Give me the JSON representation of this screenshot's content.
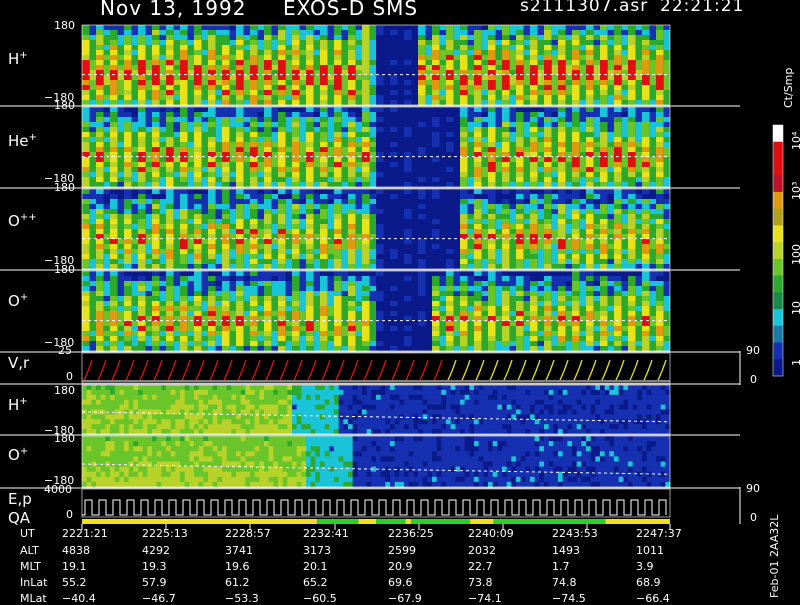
{
  "header": {
    "date": "Nov 13, 1992",
    "mission": "EXOS-D SMS",
    "file": "s2111307.asr",
    "time": "22:21:21"
  },
  "panels": {
    "hplus": {
      "label": "H",
      "sup": "+",
      "ymax": "180",
      "ymin": "−180"
    },
    "heplus": {
      "label": "He",
      "sup": "+",
      "ymax": "180",
      "ymin": "−180"
    },
    "oplusplus": {
      "label": "O",
      "sup": "++",
      "ymax": "180",
      "ymin": "−180"
    },
    "oplus": {
      "label": "O",
      "sup": "+",
      "ymax": "180",
      "ymin": "−180"
    },
    "vr": {
      "label": "V,r",
      "ymax": "25",
      "ymin": "0",
      "rmax": "90",
      "rmin": "0"
    },
    "hplus2": {
      "label": "H",
      "sup": "+",
      "ymax": "180",
      "ymin": "−180"
    },
    "oplus2": {
      "label": "O",
      "sup": "+",
      "ymax": "180",
      "ymin": "−180"
    },
    "ep": {
      "label1": "E,p",
      "label2": "QA",
      "ymax": "4000",
      "ymin": "0",
      "rmax": "90",
      "rmin": "0"
    }
  },
  "colorbar": {
    "unit": "Ct/Smp",
    "ticks": [
      "10⁴",
      "10³",
      "100",
      "10",
      "1"
    ]
  },
  "side_text": "Feb-01 2AA32L",
  "footer": {
    "labels": [
      "UT",
      "ALT",
      "MLT",
      "InLat",
      "MLat"
    ],
    "columns": [
      {
        "UT": "2221:21",
        "ALT": "4838",
        "MLT": "19.1",
        "InLat": "55.2",
        "MLat": "−40.4"
      },
      {
        "UT": "2225:13",
        "ALT": "4292",
        "MLT": "19.3",
        "InLat": "57.9",
        "MLat": "−46.7"
      },
      {
        "UT": "2228:57",
        "ALT": "3741",
        "MLT": "19.6",
        "InLat": "61.2",
        "MLat": "−53.3"
      },
      {
        "UT": "2232:41",
        "ALT": "3173",
        "MLT": "20.1",
        "InLat": "65.2",
        "MLat": "−60.5"
      },
      {
        "UT": "2236:25",
        "ALT": "2599",
        "MLT": "20.9",
        "InLat": "69.6",
        "MLat": "−67.9"
      },
      {
        "UT": "2240:09",
        "ALT": "2032",
        "MLT": "22.7",
        "InLat": "73.8",
        "MLat": "−74.1"
      },
      {
        "UT": "2243:53",
        "ALT": "1493",
        "MLT": "1.7",
        "InLat": "74.8",
        "MLat": "−74.5"
      },
      {
        "UT": "2247:37",
        "ALT": "1011",
        "MLT": "3.9",
        "InLat": "68.9",
        "MLat": "−66.4"
      }
    ]
  },
  "chart_data": {
    "type": "heatmap",
    "x_ticks": [
      "2221:21",
      "2225:13",
      "2228:57",
      "2232:41",
      "2236:25",
      "2240:09",
      "2243:53",
      "2247:37"
    ],
    "pitch_panels": [
      "H+",
      "He+",
      "O++",
      "O+"
    ],
    "pitch_ylim": [
      -180,
      180
    ],
    "n_sweeps": 42,
    "colorbar_scale": "log",
    "colorbar_range": [
      1,
      10000
    ],
    "colors": {
      "background": "#000000",
      "low": "#0a1a8a",
      "cyan": "#19c4d8",
      "green": "#2ca82c",
      "yellow": "#e8e21a",
      "red": "#e01010",
      "white": "#ffffff",
      "qa_yellow": "#f0e020",
      "qa_green": "#2bd02b"
    }
  }
}
